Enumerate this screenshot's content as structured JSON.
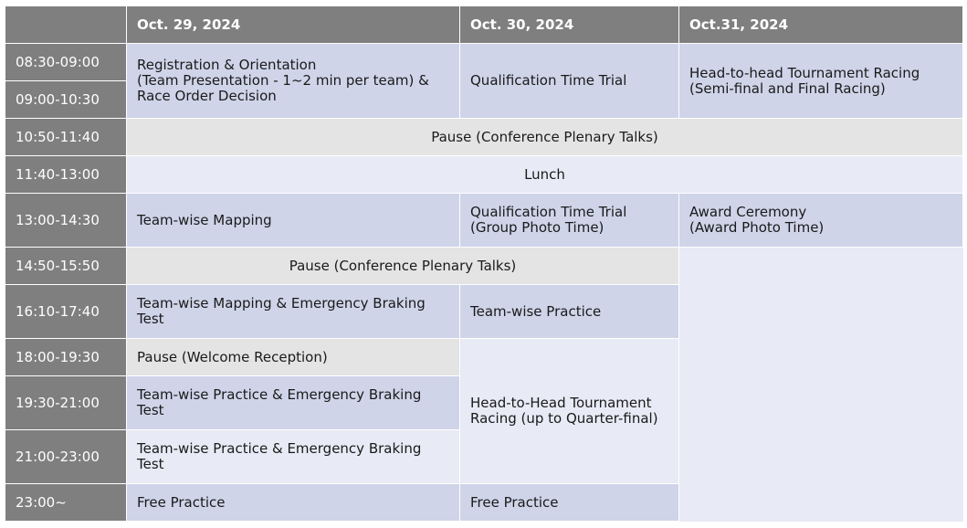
{
  "header": {
    "corner": "",
    "day1": "Oct. 29, 2024",
    "day2": "Oct. 30, 2024",
    "day3": "Oct.31, 2024"
  },
  "times": [
    "08:30-09:00",
    "09:00-10:30",
    "10:50-11:40",
    "11:40-13:00",
    "13:00-14:30",
    "14:50-15:50",
    "16:10-17:40",
    "18:00-19:30",
    "19:30-21:00",
    "21:00-23:00",
    "23:00~"
  ],
  "cells": {
    "reg": "Registration & Orientation\n(Team Presentation - 1~2 min per team) &\nRace Order Decision",
    "qual1": "Qualification Time Trial",
    "h2h_final": "Head-to-head Tournament Racing\n(Semi-final and Final Racing)",
    "pause1": "Pause (Conference Plenary Talks)",
    "lunch": "Lunch",
    "mapping": "Team-wise Mapping",
    "qual2": "Qualification Time Trial\n(Group Photo Time)",
    "award": "Award Ceremony\n(Award Photo Time)",
    "pause2": "Pause (Conference Plenary Talks)",
    "mapping_brake": "Team-wise Mapping & Emergency Braking\nTest",
    "practice_30": "Team-wise Practice",
    "welcome": "Pause (Welcome Reception)",
    "h2h_quarter": "Head-to-Head Tournament\nRacing (up to Quarter-final)",
    "practice_brake1": "Team-wise Practice & Emergency Braking\nTest",
    "practice_brake2": "Team-wise Practice & Emergency Braking\nTest",
    "free1": "Free Practice",
    "free2": "Free Practice"
  }
}
